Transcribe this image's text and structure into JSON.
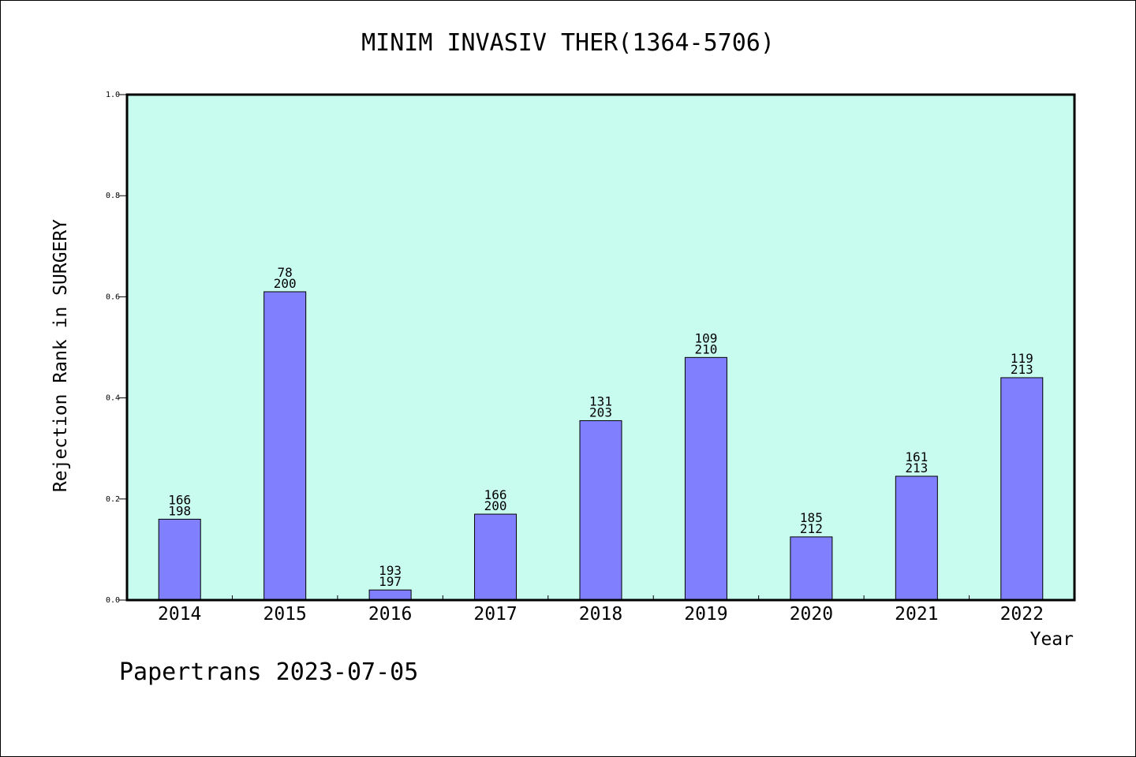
{
  "title": "MINIM INVASIV THER(1364-5706)",
  "footer": "Papertrans 2023-07-05",
  "colors": {
    "plot_bg": "#c8fcee",
    "bar": "#8080ff",
    "axis": "#000000"
  },
  "chart_data": {
    "type": "bar",
    "title": "MINIM INVASIV THER(1364-5706)",
    "xlabel": "Year",
    "ylabel": "Rejection Rank in SURGERY",
    "ylim": [
      0,
      1.0
    ],
    "yticks": [
      "0.0",
      "0.2",
      "0.4",
      "0.6",
      "0.8",
      "1.0"
    ],
    "grid": false,
    "categories": [
      "2014",
      "2015",
      "2016",
      "2017",
      "2018",
      "2019",
      "2020",
      "2021",
      "2022"
    ],
    "values": [
      0.16,
      0.61,
      0.02,
      0.17,
      0.355,
      0.48,
      0.125,
      0.245,
      0.44
    ],
    "rank": [
      "166",
      "78",
      "193",
      "166",
      "131",
      "109",
      "185",
      "161",
      "119"
    ],
    "total": [
      "198",
      "200",
      "197",
      "200",
      "203",
      "210",
      "212",
      "213",
      "213"
    ]
  }
}
